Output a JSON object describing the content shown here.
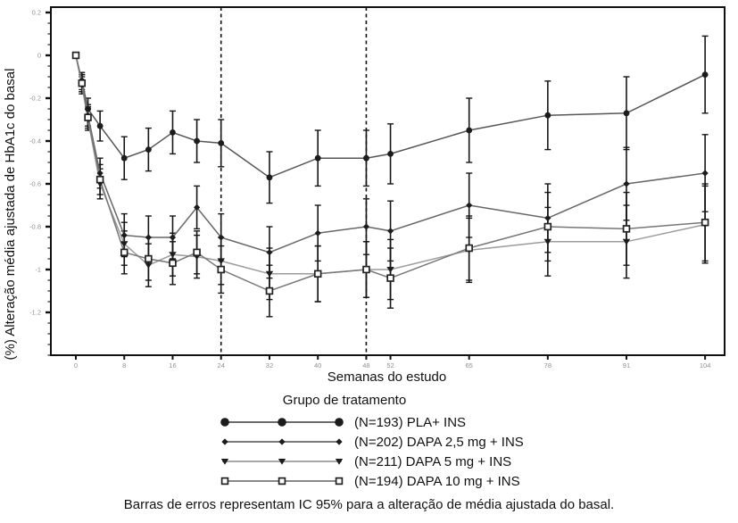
{
  "page_background": "#ffffff",
  "chart_data": {
    "type": "line",
    "title": "",
    "xlabel": "Semanas do estudo",
    "ylabel": "(%) Alteração média ajustada de HbA1c do basal",
    "legend_title": "Grupo de tratamento",
    "legend_position": "bottom",
    "grid": false,
    "xlim": [
      -4.1,
      107.2
    ],
    "ylim": [
      -1.4,
      0.225
    ],
    "x_ticks": [
      0,
      8,
      16,
      24,
      32,
      40,
      48,
      52,
      65,
      78,
      91,
      104
    ],
    "x_tick_labels": [
      "0",
      "8",
      "16",
      "24",
      "32",
      "40",
      "48",
      "52",
      "65",
      "78",
      "91",
      "104"
    ],
    "y_ticks": [
      0.2,
      0,
      -0.2,
      -0.4,
      -0.6,
      -0.8,
      -1,
      -1.2
    ],
    "y_tick_labels": [
      "0.2",
      "0",
      "-0.2",
      "-0.4",
      "-0.6",
      "-0.8",
      "-1",
      "-1.2"
    ],
    "y_minor_tick_step": 0.05,
    "reference_lines_x": [
      24,
      48
    ],
    "x": [
      0,
      1,
      2,
      4,
      8,
      12,
      16,
      20,
      24,
      32,
      40,
      48,
      52,
      65,
      78,
      91,
      104
    ],
    "ci_halfwidth": [
      0.02,
      0.04,
      0.05,
      0.07,
      0.1,
      0.1,
      0.1,
      0.1,
      0.11,
      0.12,
      0.13,
      0.13,
      0.14,
      0.15,
      0.16,
      0.17,
      0.18
    ],
    "series": [
      {
        "name": "(N=193) PLA+ INS",
        "marker": "circle-filled",
        "marker_color": "#1c1c1c",
        "line_color": "#555555",
        "values": [
          0,
          -0.12,
          -0.25,
          -0.33,
          -0.48,
          -0.44,
          -0.36,
          -0.4,
          -0.41,
          -0.57,
          -0.48,
          -0.48,
          -0.46,
          -0.35,
          -0.28,
          -0.27,
          -0.09
        ]
      },
      {
        "name": "(N=202) DAPA 2,5 mg + INS",
        "marker": "diamond-filled",
        "marker_color": "#1c1c1c",
        "line_color": "#666666",
        "values": [
          0,
          -0.13,
          -0.28,
          -0.55,
          -0.84,
          -0.85,
          -0.85,
          -0.71,
          -0.85,
          -0.92,
          -0.83,
          -0.8,
          -0.82,
          -0.7,
          -0.76,
          -0.6,
          -0.55
        ]
      },
      {
        "name": "(N=211) DAPA 5 mg + INS",
        "marker": "triangle-down-filled",
        "marker_color": "#1c1c1c",
        "line_color": "#9c9c9c",
        "values": [
          0,
          -0.14,
          -0.3,
          -0.6,
          -0.88,
          -0.98,
          -0.93,
          -0.94,
          -0.96,
          -1.02,
          -1.02,
          -1.0,
          -1.0,
          -0.91,
          -0.87,
          -0.87,
          -0.79
        ]
      },
      {
        "name": "(N=194) DAPA 10 mg + INS",
        "marker": "square-open",
        "marker_color": "#222222",
        "line_color": "#777777",
        "values": [
          0,
          -0.13,
          -0.29,
          -0.58,
          -0.92,
          -0.95,
          -0.97,
          -0.92,
          -1.0,
          -1.1,
          -1.02,
          -1.0,
          -1.04,
          -0.9,
          -0.8,
          -0.81,
          -0.78
        ]
      }
    ],
    "footnote": "Barras de erros representam IC 95% para a alteração de média ajustada do basal.",
    "error_bar_note": "IC 95%"
  },
  "colors": {
    "axis": "#111111",
    "tick_label": "#909090",
    "reference_line": "#111111"
  }
}
